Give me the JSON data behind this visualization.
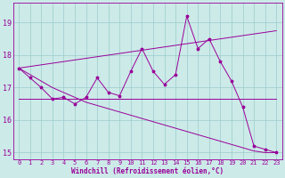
{
  "xlabel": "Windchill (Refroidissement éolien,°C)",
  "x": [
    0,
    1,
    2,
    3,
    4,
    5,
    6,
    7,
    8,
    9,
    10,
    11,
    12,
    13,
    14,
    15,
    16,
    17,
    18,
    19,
    20,
    21,
    22,
    23
  ],
  "line_main": [
    17.6,
    17.3,
    17.0,
    16.65,
    16.7,
    16.5,
    16.7,
    17.3,
    16.85,
    16.75,
    17.5,
    18.2,
    17.5,
    17.1,
    17.4,
    19.2,
    18.2,
    18.5,
    17.8,
    17.2,
    16.4,
    15.2,
    15.1,
    15.0
  ],
  "line_upper": [
    17.6,
    17.65,
    17.7,
    17.75,
    17.8,
    17.85,
    17.9,
    17.95,
    18.0,
    18.05,
    18.1,
    18.15,
    18.2,
    18.25,
    18.3,
    18.35,
    18.4,
    18.45,
    18.5,
    18.55,
    18.6,
    18.65,
    18.7,
    18.75
  ],
  "line_mid": [
    16.65,
    16.65,
    16.65,
    16.65,
    16.65,
    16.65,
    16.65,
    16.65,
    16.65,
    16.65,
    16.65,
    16.65,
    16.65,
    16.65,
    16.65,
    16.65,
    16.65,
    16.65,
    16.65,
    16.65,
    16.65,
    16.65,
    16.65,
    16.65
  ],
  "line_lower": [
    17.6,
    17.4,
    17.2,
    17.0,
    16.85,
    16.7,
    16.55,
    16.45,
    16.35,
    16.25,
    16.15,
    16.05,
    15.95,
    15.85,
    15.75,
    15.65,
    15.55,
    15.45,
    15.35,
    15.25,
    15.15,
    15.05,
    15.0,
    15.0
  ],
  "ylim": [
    14.8,
    19.6
  ],
  "xlim": [
    -0.5,
    23.5
  ],
  "bg_color": "#cceae8",
  "line_color": "#990099",
  "grid_color": "#99cccc",
  "tick_fontsize": 5,
  "label_fontsize": 5.5
}
